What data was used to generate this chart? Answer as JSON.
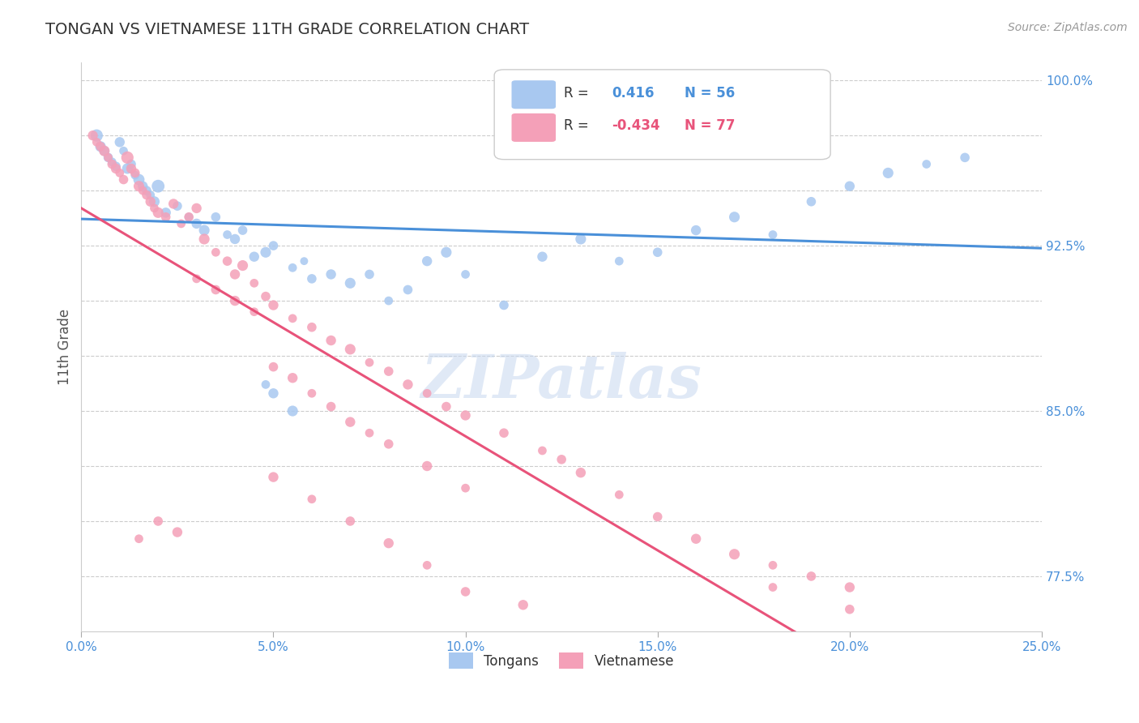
{
  "title": "TONGAN VS VIETNAMESE 11TH GRADE CORRELATION CHART",
  "source_text": "Source: ZipAtlas.com",
  "ylabel": "11th Grade",
  "xlim": [
    0.0,
    0.25
  ],
  "ylim": [
    0.75,
    1.008
  ],
  "xtick_vals": [
    0.0,
    0.05,
    0.1,
    0.15,
    0.2,
    0.25
  ],
  "xticklabels": [
    "0.0%",
    "5.0%",
    "10.0%",
    "15.0%",
    "20.0%",
    "25.0%"
  ],
  "ytick_vals": [
    0.775,
    0.8,
    0.825,
    0.85,
    0.875,
    0.9,
    0.925,
    0.95,
    0.975,
    1.0
  ],
  "yticklabels": [
    "77.5%",
    "",
    "",
    "85.0%",
    "",
    "",
    "92.5%",
    "",
    "",
    "100.0%"
  ],
  "legend_blue_label": "Tongans",
  "legend_pink_label": "Vietnamese",
  "r_blue": 0.416,
  "n_blue": 56,
  "r_pink": -0.434,
  "n_pink": 77,
  "blue_color": "#A8C8F0",
  "pink_color": "#F4A0B8",
  "blue_line_color": "#4A90D9",
  "pink_line_color": "#E8537A",
  "tick_color": "#4A90D9",
  "grid_color": "#CCCCCC",
  "blue_points": [
    [
      0.004,
      0.975
    ],
    [
      0.005,
      0.97
    ],
    [
      0.006,
      0.968
    ],
    [
      0.007,
      0.965
    ],
    [
      0.008,
      0.963
    ],
    [
      0.009,
      0.961
    ],
    [
      0.01,
      0.972
    ],
    [
      0.011,
      0.968
    ],
    [
      0.012,
      0.96
    ],
    [
      0.013,
      0.962
    ],
    [
      0.014,
      0.957
    ],
    [
      0.015,
      0.955
    ],
    [
      0.016,
      0.952
    ],
    [
      0.017,
      0.95
    ],
    [
      0.018,
      0.948
    ],
    [
      0.019,
      0.945
    ],
    [
      0.02,
      0.952
    ],
    [
      0.022,
      0.94
    ],
    [
      0.025,
      0.943
    ],
    [
      0.028,
      0.938
    ],
    [
      0.03,
      0.935
    ],
    [
      0.032,
      0.932
    ],
    [
      0.035,
      0.938
    ],
    [
      0.038,
      0.93
    ],
    [
      0.04,
      0.928
    ],
    [
      0.042,
      0.932
    ],
    [
      0.045,
      0.92
    ],
    [
      0.048,
      0.922
    ],
    [
      0.05,
      0.925
    ],
    [
      0.055,
      0.915
    ],
    [
      0.058,
      0.918
    ],
    [
      0.06,
      0.91
    ],
    [
      0.065,
      0.912
    ],
    [
      0.07,
      0.908
    ],
    [
      0.075,
      0.912
    ],
    [
      0.08,
      0.9
    ],
    [
      0.085,
      0.905
    ],
    [
      0.09,
      0.918
    ],
    [
      0.095,
      0.922
    ],
    [
      0.1,
      0.912
    ],
    [
      0.11,
      0.898
    ],
    [
      0.12,
      0.92
    ],
    [
      0.13,
      0.928
    ],
    [
      0.14,
      0.918
    ],
    [
      0.15,
      0.922
    ],
    [
      0.16,
      0.932
    ],
    [
      0.17,
      0.938
    ],
    [
      0.18,
      0.93
    ],
    [
      0.19,
      0.945
    ],
    [
      0.2,
      0.952
    ],
    [
      0.21,
      0.958
    ],
    [
      0.22,
      0.962
    ],
    [
      0.23,
      0.965
    ],
    [
      0.05,
      0.858
    ],
    [
      0.055,
      0.85
    ],
    [
      0.048,
      0.862
    ]
  ],
  "blue_sizes": [
    120,
    90,
    80,
    70,
    60,
    70,
    80,
    60,
    90,
    70,
    60,
    100,
    80,
    70,
    60,
    90,
    130,
    80,
    70,
    60,
    80,
    90,
    70,
    60,
    80,
    70,
    80,
    90,
    70,
    60,
    50,
    70,
    80,
    90,
    70,
    60,
    70,
    80,
    90,
    60,
    70,
    80,
    90,
    60,
    70,
    80,
    90,
    60,
    70,
    80,
    90,
    60,
    70,
    80,
    90,
    60
  ],
  "pink_points": [
    [
      0.003,
      0.975
    ],
    [
      0.004,
      0.972
    ],
    [
      0.005,
      0.97
    ],
    [
      0.006,
      0.968
    ],
    [
      0.007,
      0.965
    ],
    [
      0.008,
      0.962
    ],
    [
      0.009,
      0.96
    ],
    [
      0.01,
      0.958
    ],
    [
      0.011,
      0.955
    ],
    [
      0.012,
      0.965
    ],
    [
      0.013,
      0.96
    ],
    [
      0.014,
      0.958
    ],
    [
      0.015,
      0.952
    ],
    [
      0.016,
      0.95
    ],
    [
      0.017,
      0.948
    ],
    [
      0.018,
      0.945
    ],
    [
      0.019,
      0.942
    ],
    [
      0.02,
      0.94
    ],
    [
      0.022,
      0.938
    ],
    [
      0.024,
      0.944
    ],
    [
      0.026,
      0.935
    ],
    [
      0.028,
      0.938
    ],
    [
      0.03,
      0.942
    ],
    [
      0.032,
      0.928
    ],
    [
      0.035,
      0.922
    ],
    [
      0.038,
      0.918
    ],
    [
      0.04,
      0.912
    ],
    [
      0.042,
      0.916
    ],
    [
      0.045,
      0.908
    ],
    [
      0.048,
      0.902
    ],
    [
      0.05,
      0.898
    ],
    [
      0.055,
      0.892
    ],
    [
      0.06,
      0.888
    ],
    [
      0.065,
      0.882
    ],
    [
      0.07,
      0.878
    ],
    [
      0.075,
      0.872
    ],
    [
      0.08,
      0.868
    ],
    [
      0.085,
      0.862
    ],
    [
      0.09,
      0.858
    ],
    [
      0.095,
      0.852
    ],
    [
      0.1,
      0.848
    ],
    [
      0.11,
      0.84
    ],
    [
      0.12,
      0.832
    ],
    [
      0.125,
      0.828
    ],
    [
      0.13,
      0.822
    ],
    [
      0.14,
      0.812
    ],
    [
      0.15,
      0.802
    ],
    [
      0.16,
      0.792
    ],
    [
      0.17,
      0.785
    ],
    [
      0.18,
      0.78
    ],
    [
      0.19,
      0.775
    ],
    [
      0.2,
      0.77
    ],
    [
      0.03,
      0.91
    ],
    [
      0.035,
      0.905
    ],
    [
      0.04,
      0.9
    ],
    [
      0.045,
      0.895
    ],
    [
      0.05,
      0.87
    ],
    [
      0.055,
      0.865
    ],
    [
      0.06,
      0.858
    ],
    [
      0.065,
      0.852
    ],
    [
      0.07,
      0.845
    ],
    [
      0.075,
      0.84
    ],
    [
      0.08,
      0.835
    ],
    [
      0.09,
      0.825
    ],
    [
      0.1,
      0.815
    ],
    [
      0.02,
      0.8
    ],
    [
      0.025,
      0.795
    ],
    [
      0.015,
      0.792
    ],
    [
      0.1,
      0.768
    ],
    [
      0.115,
      0.762
    ],
    [
      0.18,
      0.77
    ],
    [
      0.2,
      0.76
    ],
    [
      0.05,
      0.82
    ],
    [
      0.06,
      0.81
    ],
    [
      0.07,
      0.8
    ],
    [
      0.08,
      0.79
    ],
    [
      0.09,
      0.78
    ]
  ],
  "pink_sizes": [
    80,
    60,
    70,
    90,
    60,
    70,
    80,
    60,
    70,
    120,
    80,
    70,
    90,
    60,
    70,
    80,
    60,
    90,
    70,
    80,
    60,
    70,
    80,
    90,
    60,
    70,
    80,
    90,
    60,
    70,
    80,
    60,
    70,
    80,
    90,
    60,
    70,
    80,
    60,
    70,
    80,
    70,
    60,
    70,
    80,
    60,
    70,
    80,
    90,
    60,
    70,
    80,
    60,
    70,
    80,
    60,
    70,
    80,
    60,
    70,
    80,
    60,
    70,
    80,
    60,
    70,
    80,
    60,
    70,
    80,
    60,
    70,
    80,
    60,
    70,
    80,
    60
  ]
}
